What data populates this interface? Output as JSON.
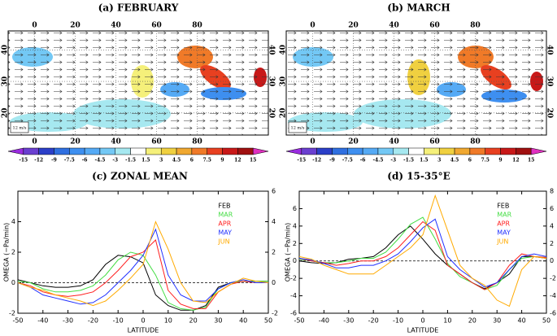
{
  "chart_data": [
    {
      "type": "map",
      "title": "(a) FEBRUARY",
      "xlim": [
        -13,
        115
      ],
      "xticks": [
        0,
        20,
        40,
        60,
        80
      ],
      "ylim": [
        13,
        46
      ],
      "yticks": [
        20,
        30,
        40
      ],
      "grid": true,
      "scale_label": "12 m/s",
      "colorbar_ticks": [
        -15,
        -12,
        -9,
        -7.5,
        -6,
        -4.5,
        -3,
        -1.5,
        1.5,
        3,
        4.5,
        6,
        7.5,
        9,
        12,
        15
      ],
      "colorbar_colors": [
        "#9a2ce0",
        "#6a3fd0",
        "#2b3fc8",
        "#2f6fe0",
        "#3e8ff0",
        "#55aaf5",
        "#73c8f5",
        "#a6e8f0",
        "#ffffff",
        "#f5f07a",
        "#f0d040",
        "#f0a830",
        "#f07a28",
        "#e84020",
        "#c81818",
        "#a01010",
        "#e030c0"
      ]
    },
    {
      "type": "map",
      "title": "(b) MARCH",
      "xlim": [
        -13,
        115
      ],
      "xticks": [
        0,
        20,
        40,
        60,
        80
      ],
      "ylim": [
        13,
        46
      ],
      "yticks": [
        20,
        30,
        40
      ],
      "grid": true,
      "scale_label": "12 m/s",
      "colorbar_ticks": [
        -15,
        -12,
        -9,
        -7.5,
        -6,
        -4.5,
        -3,
        -1.5,
        1.5,
        3,
        4.5,
        6,
        7.5,
        9,
        12,
        15
      ],
      "colorbar_colors": [
        "#9a2ce0",
        "#6a3fd0",
        "#2b3fc8",
        "#2f6fe0",
        "#3e8ff0",
        "#55aaf5",
        "#73c8f5",
        "#a6e8f0",
        "#ffffff",
        "#f5f07a",
        "#f0d040",
        "#f0a830",
        "#f07a28",
        "#e84020",
        "#c81818",
        "#a01010",
        "#e030c0"
      ]
    },
    {
      "type": "line",
      "title": "(c) ZONAL MEAN",
      "xlabel": "LATITUDE",
      "ylabel": "OMEGA (−Pa/min)",
      "x": [
        -50,
        -45,
        -40,
        -35,
        -30,
        -25,
        -20,
        -15,
        -10,
        -5,
        0,
        5,
        10,
        15,
        20,
        25,
        30,
        35,
        40,
        45,
        50
      ],
      "xlim": [
        -50,
        50
      ],
      "xticks": [
        -50,
        -40,
        -30,
        -20,
        -10,
        0,
        10,
        20,
        30,
        40,
        50
      ],
      "ylim": [
        -2,
        6
      ],
      "yticks": [
        -2,
        0,
        2,
        4
      ],
      "y2lim": [
        -2,
        6
      ],
      "y2ticks": [
        -2,
        0,
        2,
        4,
        6
      ],
      "zero_line": true,
      "legend": "upper right",
      "series": [
        {
          "name": "FEB",
          "color": "#000000",
          "values": [
            0.2,
            0,
            -0.2,
            -0.3,
            -0.3,
            -0.2,
            0.2,
            1.2,
            1.8,
            1.7,
            1.3,
            -0.8,
            -1.5,
            -1.8,
            -1.8,
            -1.5,
            -0.3,
            0,
            0.1,
            0.1,
            0.1
          ]
        },
        {
          "name": "MAR",
          "color": "#44dd44",
          "values": [
            0.1,
            0,
            -0.4,
            -0.6,
            -0.6,
            -0.5,
            -0.2,
            0.5,
            1.5,
            2.0,
            1.8,
            0.5,
            -1.3,
            -1.7,
            -1.8,
            -1.6,
            -0.4,
            0,
            0.1,
            0.1,
            0.1
          ]
        },
        {
          "name": "APR",
          "color": "#ff2020",
          "values": [
            0,
            -0.2,
            -0.6,
            -0.8,
            -0.9,
            -0.8,
            -0.6,
            0,
            0.8,
            1.7,
            2.0,
            2.8,
            -0.5,
            -1.4,
            -1.7,
            -1.7,
            -0.6,
            -0.1,
            0.1,
            0,
            0
          ]
        },
        {
          "name": "MAY",
          "color": "#2030ff",
          "values": [
            0,
            -0.3,
            -0.8,
            -1.0,
            -1.2,
            -1.4,
            -1.3,
            -0.8,
            0,
            0.8,
            1.8,
            3.5,
            0.5,
            -0.8,
            -1.2,
            -1.2,
            -0.4,
            0,
            0.2,
            0,
            0
          ]
        },
        {
          "name": "JUN",
          "color": "#ffaa00",
          "values": [
            0,
            -0.3,
            -0.5,
            -0.8,
            -1.0,
            -1.2,
            -1.5,
            -1.2,
            -0.5,
            0.3,
            1.2,
            4.0,
            2.2,
            0,
            -1.2,
            -1.3,
            -0.6,
            -0.1,
            0.3,
            0.1,
            0
          ]
        }
      ]
    },
    {
      "type": "line",
      "title": "(d) 15-35°E",
      "xlabel": "LATITUDE",
      "ylabel": "OMEGA (−Pa/min)",
      "x": [
        -50,
        -45,
        -40,
        -35,
        -30,
        -25,
        -20,
        -15,
        -10,
        -5,
        0,
        5,
        10,
        15,
        20,
        25,
        30,
        35,
        40,
        45,
        50
      ],
      "xlim": [
        -50,
        50
      ],
      "xticks": [
        -50,
        -40,
        -30,
        -20,
        -10,
        0,
        10,
        20,
        30,
        40,
        50
      ],
      "ylim": [
        -6,
        8
      ],
      "yticks": [
        -6,
        -4,
        -2,
        0,
        2,
        4,
        6
      ],
      "y2lim": [
        -6,
        8
      ],
      "y2ticks": [
        -6,
        -4,
        -2,
        0,
        2,
        4,
        6,
        8
      ],
      "zero_line": true,
      "legend": "upper right",
      "series": [
        {
          "name": "FEB",
          "color": "#000000",
          "values": [
            0,
            -0.2,
            -0.3,
            -0.2,
            0.2,
            0.3,
            0.5,
            1.5,
            3.0,
            4.0,
            2.5,
            0.8,
            -0.5,
            -1.5,
            -2.5,
            -3.2,
            -2.5,
            -1.5,
            0.5,
            0.5,
            0.3
          ]
        },
        {
          "name": "MAR",
          "color": "#44dd44",
          "values": [
            0.2,
            0,
            -0.2,
            -0.2,
            0,
            0.3,
            0.3,
            1.0,
            2.5,
            4.2,
            5.0,
            2.5,
            -0.3,
            -1.8,
            -2.5,
            -3.3,
            -2.8,
            -1.0,
            0.3,
            0.5,
            0.4
          ]
        },
        {
          "name": "APR",
          "color": "#ff2020",
          "values": [
            0.3,
            0,
            -0.2,
            -0.5,
            -0.3,
            0,
            0,
            0.5,
            1.5,
            3.0,
            4.5,
            3.5,
            -0.5,
            -1.5,
            -2.5,
            -3.3,
            -2.5,
            -0.5,
            0.8,
            0.5,
            0.4
          ]
        },
        {
          "name": "MAY",
          "color": "#2030ff",
          "values": [
            0.3,
            0.1,
            -0.3,
            -0.8,
            -0.8,
            -0.5,
            -0.5,
            0,
            0.8,
            2.2,
            3.8,
            4.8,
            0.5,
            -1.0,
            -2.0,
            -3.0,
            -2.5,
            -1.0,
            0.5,
            0.8,
            0.5
          ]
        },
        {
          "name": "JUN",
          "color": "#ffaa00",
          "values": [
            0.5,
            0.2,
            -0.5,
            -1.0,
            -1.5,
            -1.5,
            -1.5,
            -0.5,
            0.5,
            1.5,
            3.0,
            7.5,
            3.5,
            -0.5,
            -2.0,
            -2.8,
            -4.5,
            -5.2,
            -1.0,
            0.5,
            0.3
          ]
        }
      ]
    }
  ]
}
